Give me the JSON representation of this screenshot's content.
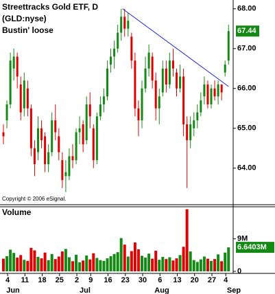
{
  "chart_data": {
    "type": "candlestick",
    "title": "Streettracks Gold ETF, D",
    "subtitle": "(GLD:nyse)",
    "annotation": "Bustin' loose",
    "copyright": "Copyright © 2006 eSignal.",
    "volume_title": "Volume",
    "months": [
      "Jun",
      "Jul",
      "Aug",
      "Sep"
    ],
    "categories": [
      null,
      null,
      "4",
      null,
      null,
      null,
      null,
      "11",
      null,
      null,
      null,
      null,
      "18",
      null,
      null,
      null,
      null,
      "25",
      null,
      null,
      null,
      null,
      "2",
      null,
      null,
      null,
      "9",
      null,
      null,
      null,
      null,
      "16",
      null,
      null,
      null,
      null,
      "23",
      null,
      null,
      null,
      null,
      "30",
      null,
      null,
      null,
      null,
      "6",
      null,
      null,
      null,
      null,
      "13",
      null,
      null,
      null,
      null,
      "20",
      null,
      null,
      null,
      null,
      "27",
      null,
      null,
      null,
      "4"
    ],
    "open": [
      64.9,
      65.2,
      65.6,
      66.5,
      66.8,
      66.1,
      65.5,
      66.0,
      65.5,
      64.5,
      64.4,
      65.0,
      64.8,
      64.1,
      64.4,
      65.2,
      64.8,
      64.2,
      63.8,
      63.8,
      64.3,
      64.2,
      64.9,
      65.1,
      64.7,
      65.6,
      65.0,
      64.2,
      65.3,
      65.6,
      65.8,
      66.6,
      66.8,
      67.0,
      67.4,
      67.8,
      67.5,
      67.3,
      66.7,
      65.5,
      65.2,
      66.0,
      66.5,
      66.8,
      66.2,
      65.5,
      65.9,
      66.5,
      66.1,
      66.7,
      66.4,
      66.0,
      66.3,
      65.1,
      64.7,
      65.0,
      65.2,
      65.4,
      65.8,
      66.1,
      65.6,
      66.0,
      65.8,
      66.1,
      66.4,
      66.7
    ],
    "high": [
      65.1,
      65.7,
      66.9,
      67.0,
      66.9,
      66.3,
      66.4,
      66.2,
      65.6,
      64.7,
      65.3,
      65.2,
      64.9,
      64.6,
      65.4,
      65.6,
      65.0,
      64.4,
      64.2,
      64.5,
      64.6,
      65.0,
      65.3,
      65.2,
      65.8,
      65.9,
      65.1,
      65.4,
      65.8,
      66.0,
      66.7,
      67.0,
      67.2,
      67.6,
      68.0,
      68.0,
      67.9,
      67.4,
      66.9,
      65.7,
      66.2,
      66.8,
      67.1,
      66.9,
      66.4,
      66.0,
      66.7,
      66.7,
      66.9,
      67.0,
      66.5,
      66.6,
      66.5,
      65.3,
      65.3,
      65.4,
      65.6,
      65.9,
      66.3,
      66.2,
      66.1,
      66.2,
      66.2,
      66.1,
      66.7,
      67.6
    ],
    "low": [
      64.6,
      65.0,
      65.5,
      66.2,
      66.0,
      65.2,
      65.3,
      65.3,
      64.3,
      63.8,
      64.2,
      64.5,
      63.9,
      63.9,
      64.3,
      64.7,
      64.2,
      63.5,
      63.4,
      63.7,
      64.0,
      64.1,
      64.6,
      64.4,
      64.6,
      65.0,
      64.0,
      64.1,
      65.2,
      65.4,
      65.7,
      66.4,
      66.5,
      66.9,
      67.2,
      67.3,
      67.3,
      66.5,
      65.3,
      64.8,
      65.0,
      65.9,
      66.3,
      66.0,
      65.2,
      65.1,
      65.8,
      65.9,
      66.0,
      66.3,
      65.8,
      65.9,
      64.8,
      63.5,
      64.5,
      64.8,
      65.0,
      65.3,
      65.6,
      65.5,
      65.5,
      65.7,
      65.6,
      65.7,
      66.3,
      66.6
    ],
    "close": [
      64.8,
      65.6,
      66.7,
      66.8,
      66.3,
      65.4,
      66.2,
      65.5,
      64.5,
      64.1,
      65.0,
      64.7,
      64.1,
      64.4,
      65.2,
      64.9,
      64.4,
      63.7,
      63.9,
      64.3,
      64.2,
      64.9,
      65.0,
      64.6,
      65.6,
      65.3,
      64.2,
      65.3,
      65.6,
      65.8,
      66.5,
      66.8,
      67.0,
      67.4,
      67.8,
      67.5,
      67.7,
      66.7,
      65.5,
      65.2,
      66.0,
      66.5,
      66.9,
      66.2,
      65.5,
      65.8,
      66.5,
      66.1,
      66.7,
      66.5,
      66.0,
      66.3,
      65.1,
      64.7,
      65.1,
      65.2,
      65.4,
      65.7,
      66.1,
      65.6,
      66.0,
      65.8,
      66.1,
      65.9,
      66.6,
      67.44
    ],
    "volume": [
      3.5,
      4.2,
      6.0,
      5.1,
      3.8,
      4.5,
      3.2,
      2.9,
      6.5,
      5.8,
      4.0,
      3.6,
      5.2,
      3.1,
      4.8,
      3.4,
      4.1,
      5.5,
      6.2,
      3.9,
      2.8,
      4.6,
      2.5,
      3.0,
      4.4,
      3.3,
      5.0,
      3.7,
      3.1,
      2.9,
      3.6,
      4.2,
      4.8,
      5.3,
      9.2,
      7.4,
      4.1,
      5.6,
      8.0,
      6.1,
      4.3,
      3.8,
      4.9,
      3.5,
      5.7,
      3.2,
      4.0,
      3.4,
      3.9,
      3.0,
      3.6,
      4.5,
      6.8,
      17.2,
      5.5,
      3.1,
      2.6,
      3.3,
      4.1,
      3.5,
      2.9,
      3.4,
      4.7,
      2.8,
      5.2,
      6.6403
    ],
    "up_color": "#138a13",
    "down_color": "#e00000",
    "ylim": [
      63.1,
      68.22
    ],
    "yticks": [
      {
        "value": 68,
        "label": "68.00"
      },
      {
        "value": 67,
        "label": "67.00"
      },
      {
        "value": 66,
        "label": "66.00"
      },
      {
        "value": 65,
        "label": "65.00"
      },
      {
        "value": 64,
        "label": "64.00"
      }
    ],
    "last_price": {
      "value": 67.44,
      "label": "67.44"
    },
    "volume_ylim": [
      0,
      17.5
    ],
    "volume_yticks": [
      {
        "value": 9,
        "label": "9M"
      },
      0
    ],
    "last_volume": {
      "value": 6.6403,
      "label": "6.6403M"
    },
    "trendline": {
      "color": "#2020cc",
      "values": [
        68.0,
        66.05
      ]
    }
  }
}
